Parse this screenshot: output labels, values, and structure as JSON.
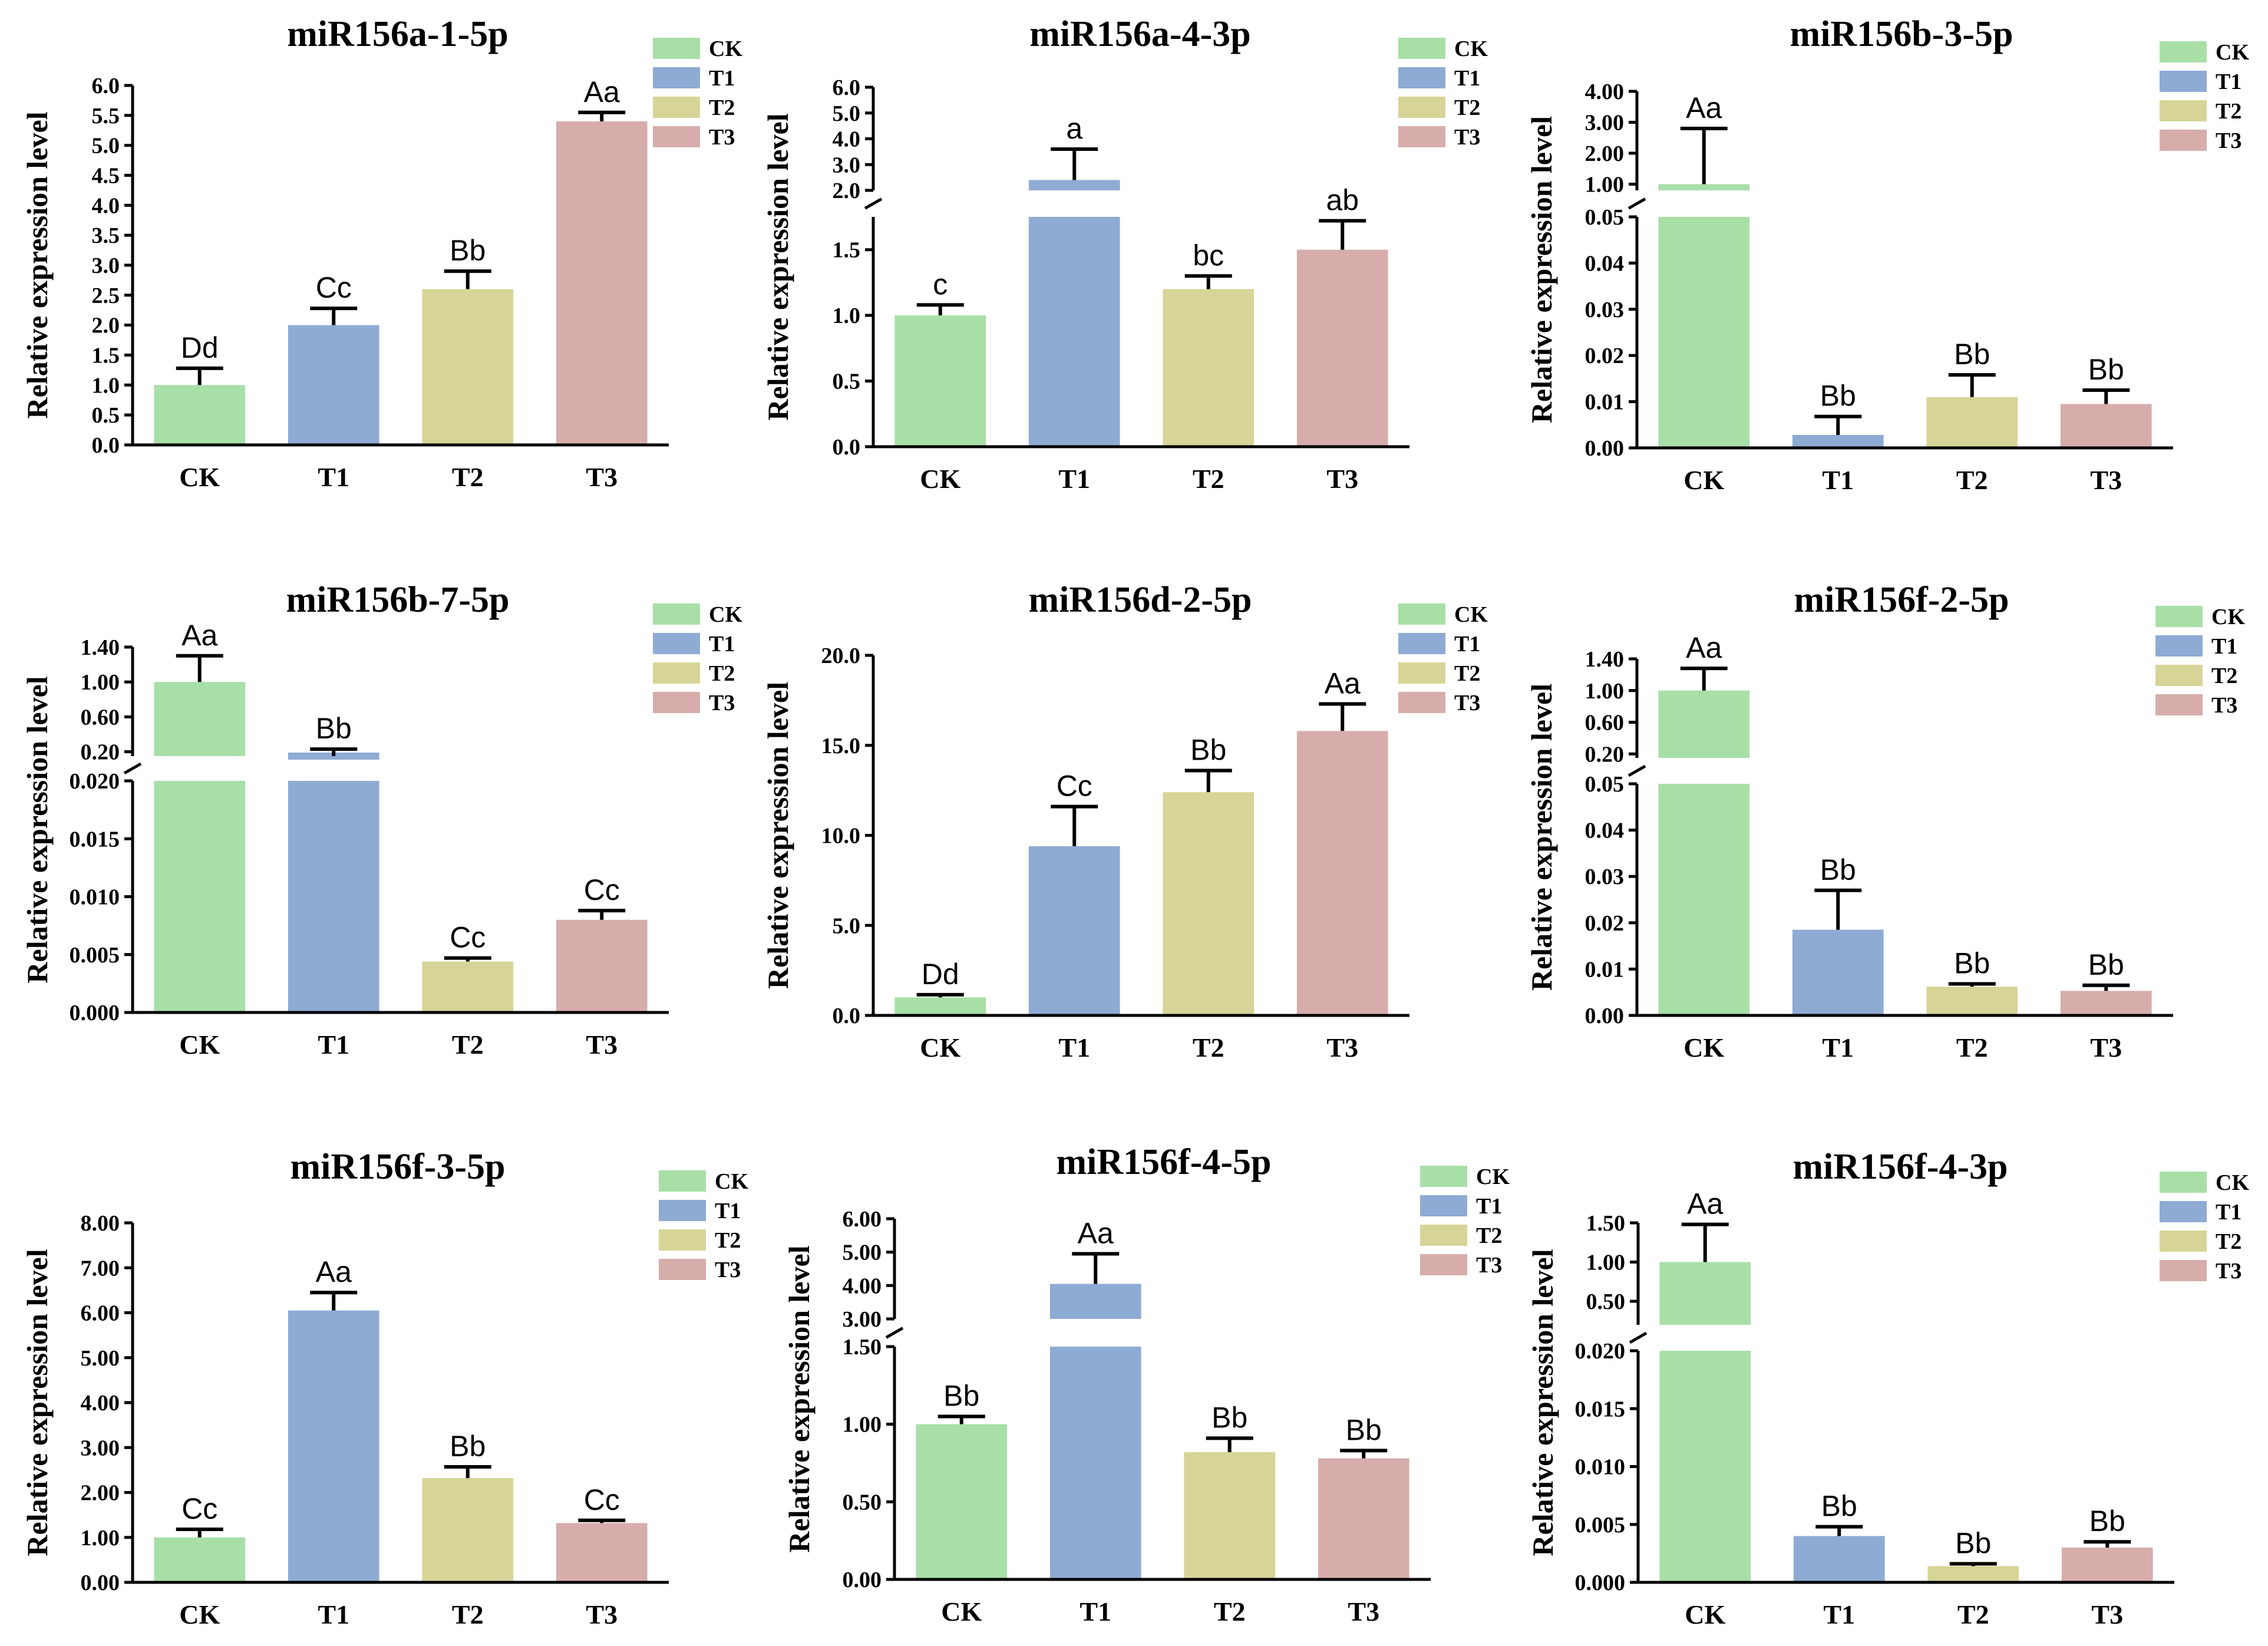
{
  "colors": {
    "CK": "#a8dfa7",
    "T1": "#8eabd3",
    "T2": "#d6d597",
    "T3": "#d7adac"
  },
  "chart_data": [
    {
      "type": "bar",
      "title": "miR156a-1-5p",
      "ylabel": "Relative expression level",
      "categories": [
        "CK",
        "T1",
        "T2",
        "T3"
      ],
      "legend": [
        "CK",
        "T1",
        "T2",
        "T3"
      ],
      "values": [
        1.0,
        2.0,
        2.6,
        5.4
      ],
      "errors": [
        0.28,
        0.28,
        0.3,
        0.15
      ],
      "significance": [
        "Dd",
        "Cc",
        "Bb",
        "Aa"
      ],
      "segments": [
        {
          "range": [
            0,
            6
          ],
          "ticks": [
            "0.0",
            "0.5",
            "1.0",
            "1.5",
            "2.0",
            "2.5",
            "3.0",
            "3.5",
            "4.0",
            "4.5",
            "5.0",
            "5.5",
            "6.0"
          ],
          "tickvals": [
            0,
            0.5,
            1,
            1.5,
            2,
            2.5,
            3,
            3.5,
            4,
            4.5,
            5,
            5.5,
            6
          ]
        }
      ]
    },
    {
      "type": "bar",
      "title": "miR156a-4-3p",
      "ylabel": "Relative expression level",
      "categories": [
        "CK",
        "T1",
        "T2",
        "T3"
      ],
      "legend": [
        "CK",
        "T1",
        "T2",
        "T3"
      ],
      "values": [
        1.0,
        2.4,
        1.2,
        1.5
      ],
      "errors": [
        0.08,
        1.2,
        0.1,
        0.22
      ],
      "significance": [
        "c",
        "a",
        "bc",
        "ab"
      ],
      "segments": [
        {
          "range": [
            0,
            1.75
          ],
          "ticks": [
            "0.0",
            "0.5",
            "1.0",
            "1.5"
          ],
          "tickvals": [
            0,
            0.5,
            1,
            1.5
          ]
        },
        {
          "range": [
            2,
            6
          ],
          "ticks": [
            "2.0",
            "3.0",
            "4.0",
            "5.0",
            "6.0"
          ],
          "tickvals": [
            2,
            3,
            4,
            5,
            6
          ]
        }
      ]
    },
    {
      "type": "bar",
      "title": "miR156b-3-5p",
      "ylabel": "Relative expression level",
      "categories": [
        "CK",
        "T1",
        "T2",
        "T3"
      ],
      "legend": [
        "CK",
        "T1",
        "T2",
        "T3"
      ],
      "values": [
        1.0,
        0.0028,
        0.011,
        0.0095
      ],
      "errors": [
        1.8,
        0.004,
        0.0048,
        0.003
      ],
      "significance": [
        "Aa",
        "Bb",
        "Bb",
        "Bb"
      ],
      "segments": [
        {
          "range": [
            0,
            0.05
          ],
          "ticks": [
            "0.00",
            "0.01",
            "0.02",
            "0.03",
            "0.04",
            "0.05"
          ],
          "tickvals": [
            0,
            0.01,
            0.02,
            0.03,
            0.04,
            0.05
          ]
        },
        {
          "range": [
            0.8,
            4.0
          ],
          "ticks": [
            "1.00",
            "2.00",
            "3.00",
            "4.00"
          ],
          "tickvals": [
            1,
            2,
            3,
            4
          ]
        }
      ]
    },
    {
      "type": "bar",
      "title": "miR156b-7-5p",
      "ylabel": "Relative expression level",
      "categories": [
        "CK",
        "T1",
        "T2",
        "T3"
      ],
      "legend": [
        "CK",
        "T1",
        "T2",
        "T3"
      ],
      "values": [
        1.0,
        0.15,
        0.0044,
        0.008
      ],
      "errors": [
        0.3,
        0.08,
        0.0003,
        0.0008
      ],
      "significance": [
        "Aa",
        "Bb",
        "Cc",
        "Cc"
      ],
      "segments": [
        {
          "range": [
            0,
            0.02
          ],
          "ticks": [
            "0.000",
            "0.005",
            "0.010",
            "0.015",
            "0.020"
          ],
          "tickvals": [
            0,
            0.005,
            0.01,
            0.015,
            0.02
          ]
        },
        {
          "range": [
            0.15,
            1.4
          ],
          "ticks": [
            "0.20",
            "0.60",
            "1.00",
            "1.40"
          ],
          "tickvals": [
            0.2,
            0.6,
            1.0,
            1.4
          ]
        }
      ]
    },
    {
      "type": "bar",
      "title": "miR156d-2-5p",
      "ylabel": "Relative expression level",
      "categories": [
        "CK",
        "T1",
        "T2",
        "T3"
      ],
      "legend": [
        "CK",
        "T1",
        "T2",
        "T3"
      ],
      "values": [
        1.0,
        9.4,
        12.4,
        15.8
      ],
      "errors": [
        0.15,
        2.2,
        1.2,
        1.5
      ],
      "significance": [
        "Dd",
        "Cc",
        "Bb",
        "Aa"
      ],
      "segments": [
        {
          "range": [
            0,
            20
          ],
          "ticks": [
            "0.0",
            "5.0",
            "10.0",
            "15.0",
            "20.0"
          ],
          "tickvals": [
            0,
            5,
            10,
            15,
            20
          ]
        }
      ]
    },
    {
      "type": "bar",
      "title": "miR156f-2-5p",
      "ylabel": "Relative expression level",
      "categories": [
        "CK",
        "T1",
        "T2",
        "T3"
      ],
      "legend": [
        "CK",
        "T1",
        "T2",
        "T3"
      ],
      "values": [
        1.0,
        0.0185,
        0.0062,
        0.0053
      ],
      "errors": [
        0.28,
        0.0085,
        0.0006,
        0.0012
      ],
      "significance": [
        "Aa",
        "Bb",
        "Bb",
        "Bb"
      ],
      "segments": [
        {
          "range": [
            0,
            0.05
          ],
          "ticks": [
            "0.00",
            "0.01",
            "0.02",
            "0.03",
            "0.04",
            "0.05"
          ],
          "tickvals": [
            0,
            0.01,
            0.02,
            0.03,
            0.04,
            0.05
          ]
        },
        {
          "range": [
            0.15,
            1.4
          ],
          "ticks": [
            "0.20",
            "0.60",
            "1.00",
            "1.40"
          ],
          "tickvals": [
            0.2,
            0.6,
            1.0,
            1.4
          ]
        }
      ]
    },
    {
      "type": "bar",
      "title": "miR156f-3-5p",
      "ylabel": "Relative expression level",
      "categories": [
        "CK",
        "T1",
        "T2",
        "T3"
      ],
      "legend": [
        "CK",
        "T1",
        "T2",
        "T3"
      ],
      "values": [
        1.0,
        6.05,
        2.32,
        1.32
      ],
      "errors": [
        0.18,
        0.4,
        0.25,
        0.06
      ],
      "significance": [
        "Cc",
        "Aa",
        "Bb",
        "Cc"
      ],
      "segments": [
        {
          "range": [
            0,
            8
          ],
          "ticks": [
            "0.00",
            "1.00",
            "2.00",
            "3.00",
            "4.00",
            "5.00",
            "6.00",
            "7.00",
            "8.00"
          ],
          "tickvals": [
            0,
            1,
            2,
            3,
            4,
            5,
            6,
            7,
            8
          ]
        }
      ]
    },
    {
      "type": "bar",
      "title": "miR156f-4-5p",
      "ylabel": "Relative expression level",
      "categories": [
        "CK",
        "T1",
        "T2",
        "T3"
      ],
      "legend": [
        "CK",
        "T1",
        "T2",
        "T3"
      ],
      "values": [
        1.0,
        4.05,
        0.82,
        0.78
      ],
      "errors": [
        0.05,
        0.9,
        0.09,
        0.05
      ],
      "significance": [
        "Bb",
        "Aa",
        "Bb",
        "Bb"
      ],
      "segments": [
        {
          "range": [
            0,
            1.5
          ],
          "ticks": [
            "0.00",
            "0.50",
            "1.00",
            "1.50"
          ],
          "tickvals": [
            0,
            0.5,
            1.0,
            1.5
          ]
        },
        {
          "range": [
            3.0,
            6.0
          ],
          "ticks": [
            "3.00",
            "4.00",
            "5.00",
            "6.00"
          ],
          "tickvals": [
            3,
            4,
            5,
            6
          ]
        }
      ]
    },
    {
      "type": "bar",
      "title": "miR156f-4-3p",
      "ylabel": "Relative expression level",
      "categories": [
        "CK",
        "T1",
        "T2",
        "T3"
      ],
      "legend": [
        "CK",
        "T1",
        "T2",
        "T3"
      ],
      "values": [
        1.0,
        0.004,
        0.0014,
        0.003
      ],
      "errors": [
        0.48,
        0.0008,
        0.0002,
        0.0005
      ],
      "significance": [
        "Aa",
        "Bb",
        "Bb",
        "Bb"
      ],
      "segments": [
        {
          "range": [
            0,
            0.02
          ],
          "ticks": [
            "0.000",
            "0.005",
            "0.010",
            "0.015",
            "0.020"
          ],
          "tickvals": [
            0,
            0.005,
            0.01,
            0.015,
            0.02
          ]
        },
        {
          "range": [
            0.2,
            1.5
          ],
          "ticks": [
            "0.50",
            "1.00",
            "1.50"
          ],
          "tickvals": [
            0.5,
            1.0,
            1.5
          ]
        }
      ]
    }
  ]
}
